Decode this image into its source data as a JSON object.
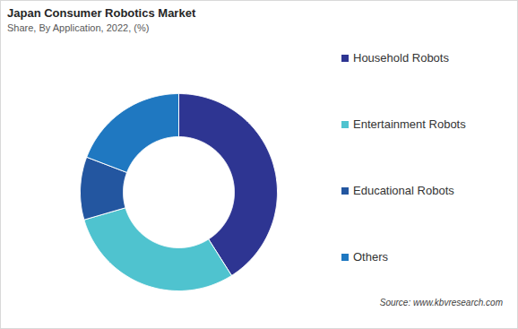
{
  "chart_data": {
    "type": "donut",
    "title": "Japan Consumer Robotics Market",
    "subtitle": "Share, By Application, 2022, (%)",
    "categories": [
      "Household Robots",
      "Entertainment Robots",
      "Educational Robots",
      "Others"
    ],
    "values": [
      41.0,
      29.5,
      10.3,
      19.2
    ],
    "colors": [
      "#2e3592",
      "#4fc3cf",
      "#2356a0",
      "#1f78c1"
    ],
    "legend": "right",
    "tick_labels": false,
    "source": "Source: www.kbvresearch.com"
  }
}
